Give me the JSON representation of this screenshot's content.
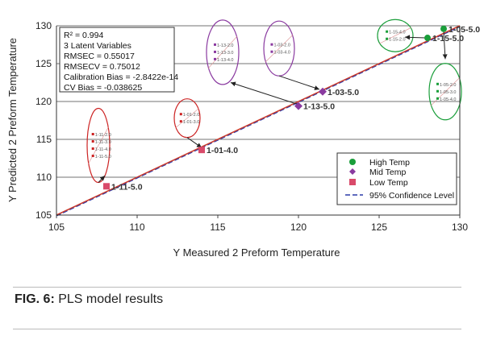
{
  "chart_data": {
    "type": "scatter",
    "xlabel": "Y Measured 2 Preform Temperature",
    "ylabel": "Y Predicted 2 Preform Temperature",
    "xlim": [
      105,
      130
    ],
    "ylim": [
      105,
      130
    ],
    "x_ticks": [
      "105",
      "110",
      "115",
      "120",
      "125",
      "130"
    ],
    "y_ticks": [
      "105",
      "110",
      "115",
      "120",
      "125",
      "130"
    ],
    "grid": "horizontal",
    "stats": [
      "R² = 0.994",
      "3 Latent Variables",
      "RMSEC = 0.55017",
      "RMSECV = 0.75012",
      "Calibration Bias = -2.8422e-14",
      "CV Bias = -0.038625"
    ],
    "legend_position": "bottom-right",
    "series": [
      {
        "name": "High Temp",
        "color": "#1a9e3a",
        "marker": "circle",
        "points": [
          [
            129.0,
            129.6
          ],
          [
            128.0,
            128.4
          ]
        ],
        "labels": [
          "1-05-5.0",
          "1-15-5.0"
        ]
      },
      {
        "name": "Mid Temp",
        "color": "#8a3aa0",
        "marker": "diamond",
        "points": [
          [
            121.5,
            121.3
          ],
          [
            120.0,
            119.4
          ]
        ],
        "labels": [
          "1-03-5.0",
          "1-13-5.0"
        ]
      },
      {
        "name": "Low Temp",
        "color": "#d94a6a",
        "marker": "square",
        "points": [
          [
            114.0,
            113.6
          ],
          [
            108.1,
            108.8
          ]
        ],
        "labels": [
          "1-01-4.0",
          "1-11-5.0"
        ]
      }
    ],
    "confidence_level": {
      "name": "95% Confidence Level",
      "color": "#2a3aa8"
    },
    "fit_line": {
      "color": "#cc3a2a",
      "x": [
        105,
        130
      ],
      "y": [
        105,
        130
      ]
    },
    "zoom_groups": [
      {
        "color": "#cc2222",
        "x": 107.6,
        "y": 114.2,
        "rx": 14,
        "ry": 46,
        "items": [
          "1-11-2.0",
          "1-11-3.0",
          "1-11-4.0",
          "1-11-5.0"
        ],
        "arrow_to": [
          108.0,
          110.2
        ]
      },
      {
        "color": "#cc2222",
        "x": 113.1,
        "y": 117.8,
        "rx": 16,
        "ry": 24,
        "items": [
          "1-01-2.0",
          "1-01-3.0"
        ],
        "arrow_to": [
          114.0,
          113.9
        ]
      },
      {
        "color": "#8a3aa0",
        "x": 115.3,
        "y": 126.5,
        "rx": 20,
        "ry": 40,
        "items": [
          "1-13-2.0",
          "1-13-3.0",
          "1-13-4.0"
        ],
        "arrow_from": [
          120.0,
          119.6
        ],
        "arrow_to": [
          115.8,
          122.5
        ]
      },
      {
        "color": "#8a3aa0",
        "x": 118.8,
        "y": 127.0,
        "rx": 19,
        "ry": 34,
        "items": [
          "1-03-2.0",
          "1-03-4.0"
        ],
        "arrow_to": [
          121.3,
          121.6
        ]
      },
      {
        "color": "#1a9e3a",
        "x": 126.0,
        "y": 128.7,
        "rx": 22,
        "ry": 20,
        "items": [
          "1-15-4.0",
          "1-15-2.0"
        ],
        "arrow_from": [
          127.9,
          128.4
        ],
        "arrow_to": [
          126.6,
          128.5
        ]
      },
      {
        "color": "#1a9e3a",
        "x": 129.1,
        "y": 121.3,
        "rx": 20,
        "ry": 35,
        "items": [
          "1-05-2.0",
          "1-05-3.0",
          "1-05-4.0"
        ],
        "arrow_from": [
          129.0,
          129.2
        ],
        "arrow_to": [
          129.1,
          125.6
        ]
      }
    ]
  },
  "caption": {
    "label": "FIG. 6:",
    "text": " PLS model results"
  }
}
